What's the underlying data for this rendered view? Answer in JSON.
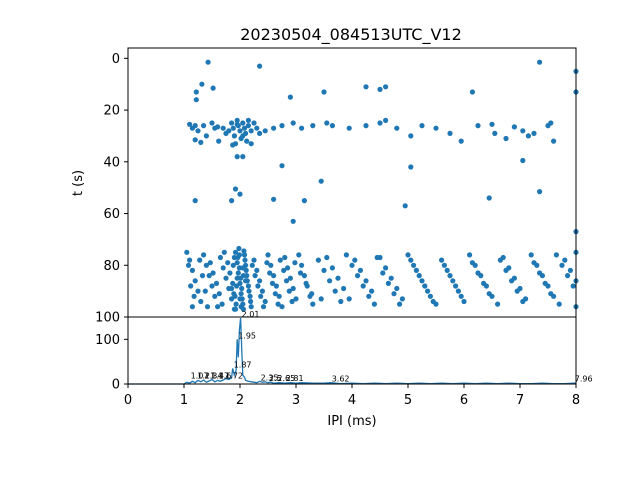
{
  "chart_data": [
    {
      "type": "scatter",
      "title": "20230504_084513UTC_V12",
      "xlabel": "",
      "ylabel": "t (s)",
      "xlim": [
        0,
        8
      ],
      "ylim": [
        100,
        -4
      ],
      "y_inverted": true,
      "y_ticks": [
        0,
        20,
        40,
        60,
        80,
        100
      ],
      "grid": false,
      "color": "#1f77b4",
      "points": [
        [
          1.43,
          1.5
        ],
        [
          1.32,
          10
        ],
        [
          1.52,
          11.5
        ],
        [
          1.22,
          13
        ],
        [
          1.22,
          16
        ],
        [
          2.35,
          3
        ],
        [
          3.5,
          13
        ],
        [
          2.9,
          15
        ],
        [
          4.25,
          11
        ],
        [
          4.5,
          12
        ],
        [
          4.6,
          11
        ],
        [
          7.35,
          1.5
        ],
        [
          6.15,
          13
        ],
        [
          8,
          5
        ],
        [
          8,
          13
        ],
        [
          1.1,
          25.5
        ],
        [
          1.15,
          27
        ],
        [
          1.2,
          26
        ],
        [
          1.25,
          28
        ],
        [
          1.35,
          26
        ],
        [
          1.4,
          30
        ],
        [
          1.5,
          25
        ],
        [
          1.55,
          27
        ],
        [
          1.6,
          26.5
        ],
        [
          1.62,
          32
        ],
        [
          1.7,
          27
        ],
        [
          1.75,
          29
        ],
        [
          1.8,
          28
        ],
        [
          1.85,
          25
        ],
        [
          1.88,
          27
        ],
        [
          1.9,
          30
        ],
        [
          1.92,
          33
        ],
        [
          1.95,
          24
        ],
        [
          1.97,
          26
        ],
        [
          2.0,
          28
        ],
        [
          2.02,
          31
        ],
        [
          2.05,
          25
        ],
        [
          2.08,
          27
        ],
        [
          2.1,
          29
        ],
        [
          2.12,
          32
        ],
        [
          2.15,
          26
        ],
        [
          2.2,
          28
        ],
        [
          2.25,
          25
        ],
        [
          2.3,
          27
        ],
        [
          2.35,
          29
        ],
        [
          2.45,
          28
        ],
        [
          2.6,
          27
        ],
        [
          2.75,
          26
        ],
        [
          2.95,
          25
        ],
        [
          3.1,
          27
        ],
        [
          3.3,
          26
        ],
        [
          3.55,
          25
        ],
        [
          3.65,
          26
        ],
        [
          3.95,
          27
        ],
        [
          4.25,
          26
        ],
        [
          4.5,
          25
        ],
        [
          4.6,
          24
        ],
        [
          4.8,
          27
        ],
        [
          5.05,
          30
        ],
        [
          5.25,
          26
        ],
        [
          5.5,
          27
        ],
        [
          5.75,
          29
        ],
        [
          5.95,
          32
        ],
        [
          6.25,
          26
        ],
        [
          6.5,
          25.5
        ],
        [
          6.55,
          29
        ],
        [
          6.75,
          31
        ],
        [
          6.9,
          26.5
        ],
        [
          7.05,
          28
        ],
        [
          7.15,
          30
        ],
        [
          7.25,
          29
        ],
        [
          7.5,
          26
        ],
        [
          7.55,
          25
        ],
        [
          7.6,
          32
        ],
        [
          1.2,
          31.5
        ],
        [
          1.3,
          32.5
        ],
        [
          1.95,
          38
        ],
        [
          2.05,
          38
        ],
        [
          1.87,
          33.5
        ],
        [
          1.95,
          25.5
        ],
        [
          2.05,
          30
        ],
        [
          2.15,
          24
        ],
        [
          2.2,
          33
        ],
        [
          2.75,
          41.5
        ],
        [
          3.45,
          47.5
        ],
        [
          5.05,
          42
        ],
        [
          7.05,
          39.5
        ],
        [
          7.35,
          51.5
        ],
        [
          4.95,
          57
        ],
        [
          6.45,
          54
        ],
        [
          1.2,
          55
        ],
        [
          1.85,
          55
        ],
        [
          1.92,
          50.5
        ],
        [
          2.0,
          52.5
        ],
        [
          2.6,
          54.5
        ],
        [
          2.95,
          63
        ],
        [
          3.15,
          55
        ],
        [
          8,
          67
        ],
        [
          1.05,
          75
        ],
        [
          1.1,
          78
        ],
        [
          1.15,
          82
        ],
        [
          1.2,
          86
        ],
        [
          1.25,
          90
        ],
        [
          1.3,
          94
        ],
        [
          1.15,
          96
        ],
        [
          1.35,
          76
        ],
        [
          1.4,
          80
        ],
        [
          1.45,
          84
        ],
        [
          1.5,
          88
        ],
        [
          1.55,
          92
        ],
        [
          1.6,
          96
        ],
        [
          1.65,
          77
        ],
        [
          1.7,
          81
        ],
        [
          1.75,
          85
        ],
        [
          1.8,
          89
        ],
        [
          1.85,
          93
        ],
        [
          1.9,
          97
        ],
        [
          1.92,
          75
        ],
        [
          1.95,
          79
        ],
        [
          1.97,
          83
        ],
        [
          2.0,
          87
        ],
        [
          2.02,
          91
        ],
        [
          2.05,
          95
        ],
        [
          2.08,
          76
        ],
        [
          2.1,
          80
        ],
        [
          2.12,
          84
        ],
        [
          2.15,
          88
        ],
        [
          2.18,
          92
        ],
        [
          2.2,
          96
        ],
        [
          2.25,
          78
        ],
        [
          2.3,
          82
        ],
        [
          2.35,
          86
        ],
        [
          2.4,
          90
        ],
        [
          2.45,
          94
        ],
        [
          2.5,
          76
        ],
        [
          2.55,
          80
        ],
        [
          2.6,
          84
        ],
        [
          2.65,
          88
        ],
        [
          2.7,
          92
        ],
        [
          2.75,
          96
        ],
        [
          2.8,
          77
        ],
        [
          2.85,
          81
        ],
        [
          2.9,
          85
        ],
        [
          2.95,
          89
        ],
        [
          3.0,
          93
        ],
        [
          3.05,
          76
        ],
        [
          3.1,
          80
        ],
        [
          3.15,
          84
        ],
        [
          3.2,
          88
        ],
        [
          3.25,
          92
        ],
        [
          3.3,
          95
        ],
        [
          3.4,
          78
        ],
        [
          3.5,
          82
        ],
        [
          3.6,
          86
        ],
        [
          3.7,
          90
        ],
        [
          3.8,
          94
        ],
        [
          3.9,
          76
        ],
        [
          4.0,
          80
        ],
        [
          4.1,
          84
        ],
        [
          4.2,
          88
        ],
        [
          4.3,
          92
        ],
        [
          4.4,
          95
        ],
        [
          4.5,
          77
        ],
        [
          4.6,
          81
        ],
        [
          4.7,
          85
        ],
        [
          4.8,
          89
        ],
        [
          4.9,
          93
        ],
        [
          5.0,
          76
        ],
        [
          5.1,
          80
        ],
        [
          5.2,
          84
        ],
        [
          5.3,
          88
        ],
        [
          5.4,
          92
        ],
        [
          5.5,
          95
        ],
        [
          5.6,
          78
        ],
        [
          5.7,
          82
        ],
        [
          5.8,
          86
        ],
        [
          5.9,
          90
        ],
        [
          6.0,
          94
        ],
        [
          6.1,
          76
        ],
        [
          6.2,
          80
        ],
        [
          6.3,
          84
        ],
        [
          6.4,
          88
        ],
        [
          6.5,
          92
        ],
        [
          6.6,
          95
        ],
        [
          6.7,
          77
        ],
        [
          6.8,
          81
        ],
        [
          6.9,
          85
        ],
        [
          7.0,
          89
        ],
        [
          7.1,
          93
        ],
        [
          7.2,
          76
        ],
        [
          7.3,
          80
        ],
        [
          7.4,
          84
        ],
        [
          7.5,
          88
        ],
        [
          7.6,
          92
        ],
        [
          7.7,
          95
        ],
        [
          7.8,
          78
        ],
        [
          7.9,
          82
        ],
        [
          8.0,
          86
        ],
        [
          8.0,
          75
        ],
        [
          8.0,
          96
        ],
        [
          1.08,
          80
        ],
        [
          1.12,
          88
        ],
        [
          1.18,
          92
        ],
        [
          1.28,
          78
        ],
        [
          1.33,
          84
        ],
        [
          1.38,
          90
        ],
        [
          1.42,
          96
        ],
        [
          1.47,
          79
        ],
        [
          1.52,
          83
        ],
        [
          1.58,
          87
        ],
        [
          1.63,
          91
        ],
        [
          1.68,
          95
        ],
        [
          1.72,
          75
        ],
        [
          1.78,
          79
        ],
        [
          1.82,
          83
        ],
        [
          1.87,
          87
        ],
        [
          1.89,
          91
        ],
        [
          1.93,
          95
        ],
        [
          1.96,
          77
        ],
        [
          1.99,
          81
        ],
        [
          2.01,
          85
        ],
        [
          2.03,
          89
        ],
        [
          2.04,
          93
        ],
        [
          2.06,
          97
        ],
        [
          2.09,
          78
        ],
        [
          2.11,
          82
        ],
        [
          2.13,
          86
        ],
        [
          2.16,
          90
        ],
        [
          2.19,
          94
        ],
        [
          2.22,
          80
        ],
        [
          2.27,
          84
        ],
        [
          2.32,
          88
        ],
        [
          2.37,
          92
        ],
        [
          2.42,
          96
        ],
        [
          2.48,
          79
        ],
        [
          2.53,
          83
        ],
        [
          2.58,
          87
        ],
        [
          2.63,
          91
        ],
        [
          2.68,
          95
        ],
        [
          2.72,
          78
        ],
        [
          2.78,
          82
        ],
        [
          2.83,
          86
        ],
        [
          2.88,
          90
        ],
        [
          2.93,
          94
        ],
        [
          2.98,
          79
        ],
        [
          3.08,
          83
        ],
        [
          3.18,
          87
        ],
        [
          3.28,
          91
        ],
        [
          3.45,
          93
        ],
        [
          3.55,
          77
        ],
        [
          3.65,
          81
        ],
        [
          3.75,
          85
        ],
        [
          3.85,
          89
        ],
        [
          3.95,
          93
        ],
        [
          4.05,
          78
        ],
        [
          4.15,
          82
        ],
        [
          4.25,
          86
        ],
        [
          4.35,
          90
        ],
        [
          4.45,
          77
        ],
        [
          4.55,
          83
        ],
        [
          4.65,
          87
        ],
        [
          4.75,
          91
        ],
        [
          4.85,
          95
        ],
        [
          5.05,
          78
        ],
        [
          5.15,
          82
        ],
        [
          5.25,
          86
        ],
        [
          5.35,
          90
        ],
        [
          5.45,
          94
        ],
        [
          5.65,
          80
        ],
        [
          5.75,
          84
        ],
        [
          5.85,
          88
        ],
        [
          5.95,
          92
        ],
        [
          6.15,
          79
        ],
        [
          6.25,
          83
        ],
        [
          6.35,
          87
        ],
        [
          6.45,
          91
        ],
        [
          6.65,
          78
        ],
        [
          6.75,
          82
        ],
        [
          6.85,
          86
        ],
        [
          6.95,
          90
        ],
        [
          7.05,
          94
        ],
        [
          7.25,
          79
        ],
        [
          7.35,
          83
        ],
        [
          7.45,
          87
        ],
        [
          7.55,
          91
        ],
        [
          7.65,
          76
        ],
        [
          7.75,
          80
        ],
        [
          7.85,
          84
        ],
        [
          7.95,
          88
        ],
        [
          1.9,
          77
        ],
        [
          1.95,
          85
        ],
        [
          2.0,
          93
        ],
        [
          2.05,
          81
        ],
        [
          1.85,
          89
        ],
        [
          1.92,
          97
        ],
        [
          2.1,
          86
        ],
        [
          1.98,
          73.5
        ],
        [
          2.07,
          74.5
        ],
        [
          1.88,
          80
        ],
        [
          1.94,
          88
        ],
        [
          2.02,
          96
        ],
        [
          2.06,
          84
        ],
        [
          1.91,
          92
        ],
        [
          1.99,
          76
        ]
      ]
    },
    {
      "type": "line",
      "title": "",
      "xlabel": "IPI (ms)",
      "ylabel": "",
      "xlim": [
        0,
        8
      ],
      "ylim": [
        0,
        150
      ],
      "x_ticks": [
        0,
        1,
        2,
        3,
        4,
        5,
        6,
        7,
        8
      ],
      "y_ticks": [
        0,
        100
      ],
      "grid": false,
      "color": "#1f77b4",
      "x": [
        0,
        1.0,
        1.05,
        1.1,
        1.15,
        1.2,
        1.25,
        1.3,
        1.35,
        1.4,
        1.45,
        1.5,
        1.55,
        1.6,
        1.65,
        1.7,
        1.75,
        1.8,
        1.85,
        1.87,
        1.9,
        1.93,
        1.95,
        1.97,
        1.99,
        2.01,
        2.03,
        2.05,
        2.08,
        2.1,
        2.15,
        2.2,
        2.25,
        2.3,
        2.35,
        2.4,
        2.45,
        2.5,
        2.55,
        2.6,
        2.7,
        2.8,
        2.9,
        3.0,
        3.1,
        3.3,
        3.5,
        3.62,
        3.8,
        4.0,
        4.2,
        4.4,
        4.6,
        4.8,
        5.0,
        5.2,
        5.4,
        5.6,
        5.8,
        6.0,
        6.2,
        6.4,
        6.6,
        6.8,
        7.0,
        7.2,
        7.4,
        7.6,
        7.8,
        7.96,
        8.0
      ],
      "y": [
        0,
        0,
        4,
        2,
        6,
        3,
        8,
        5,
        9,
        4,
        7,
        10,
        5,
        8,
        6,
        9,
        12,
        10,
        14,
        35,
        20,
        30,
        100,
        60,
        120,
        148,
        80,
        20,
        15,
        8,
        6,
        5,
        4,
        3,
        6,
        4,
        5,
        3,
        4,
        2,
        3,
        2,
        3,
        2,
        3,
        2,
        2,
        3,
        1,
        2,
        1,
        2,
        1,
        2,
        1,
        2,
        1,
        2,
        1,
        2,
        1,
        2,
        1,
        2,
        1,
        1,
        2,
        1,
        1,
        2,
        2
      ],
      "peak_labels": [
        {
          "x": 2.01,
          "y": 148,
          "text": "2.01"
        },
        {
          "x": 1.95,
          "y": 100,
          "text": "1.95"
        },
        {
          "x": 1.87,
          "y": 35,
          "text": "1.87"
        },
        {
          "x": 1.1,
          "y": 10,
          "text": "1.07"
        },
        {
          "x": 1.22,
          "y": 10,
          "text": "1.21"
        },
        {
          "x": 1.35,
          "y": 10,
          "text": "1.34"
        },
        {
          "x": 1.47,
          "y": 10,
          "text": "1.47"
        },
        {
          "x": 1.6,
          "y": 10,
          "text": "1.6"
        },
        {
          "x": 1.72,
          "y": 10,
          "text": "1.72"
        },
        {
          "x": 2.35,
          "y": 6,
          "text": "2.35"
        },
        {
          "x": 2.5,
          "y": 5,
          "text": "2.5"
        },
        {
          "x": 2.65,
          "y": 4,
          "text": "2.65"
        },
        {
          "x": 2.8,
          "y": 4,
          "text": "2.81"
        },
        {
          "x": 3.62,
          "y": 3,
          "text": "3.62"
        },
        {
          "x": 7.96,
          "y": 3,
          "text": "7.96"
        }
      ]
    }
  ]
}
